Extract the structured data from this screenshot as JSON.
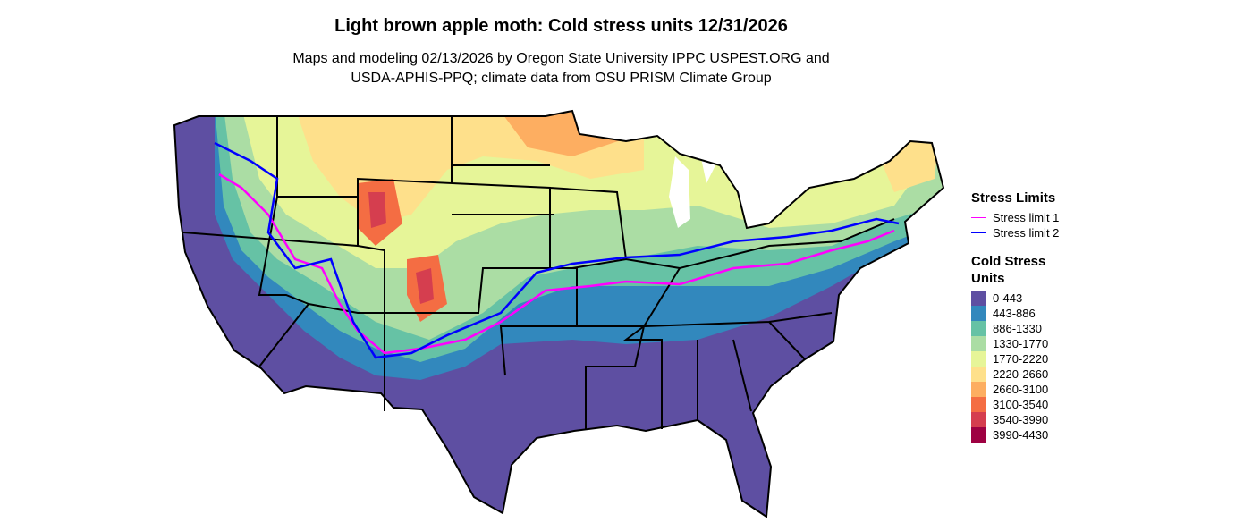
{
  "title": "Light brown apple moth: Cold stress units 12/31/2026",
  "subtitle": [
    "Maps and modeling 02/13/2026 by Oregon State University IPPC USPEST.ORG and",
    "USDA-APHIS-PPQ; climate data from OSU PRISM Climate Group"
  ],
  "legend": {
    "limits_title": "Stress Limits",
    "limits": [
      {
        "label": "Stress limit 1",
        "color": "#ff00ff"
      },
      {
        "label": "Stress limit 2",
        "color": "#0000ff"
      }
    ],
    "units_title": "Cold Stress Units",
    "units": [
      {
        "label": "0-443",
        "color": "#5e4fa2"
      },
      {
        "label": "443-886",
        "color": "#3288bd"
      },
      {
        "label": "886-1330",
        "color": "#66c2a5"
      },
      {
        "label": "1330-1770",
        "color": "#abdda4"
      },
      {
        "label": "1770-2220",
        "color": "#e6f598"
      },
      {
        "label": "2220-2660",
        "color": "#fee08b"
      },
      {
        "label": "2660-3100",
        "color": "#fdae61"
      },
      {
        "label": "3100-3540",
        "color": "#f46d43"
      },
      {
        "label": "3540-3990",
        "color": "#d53e4f"
      },
      {
        "label": "3990-4430",
        "color": "#9e0142"
      }
    ]
  }
}
